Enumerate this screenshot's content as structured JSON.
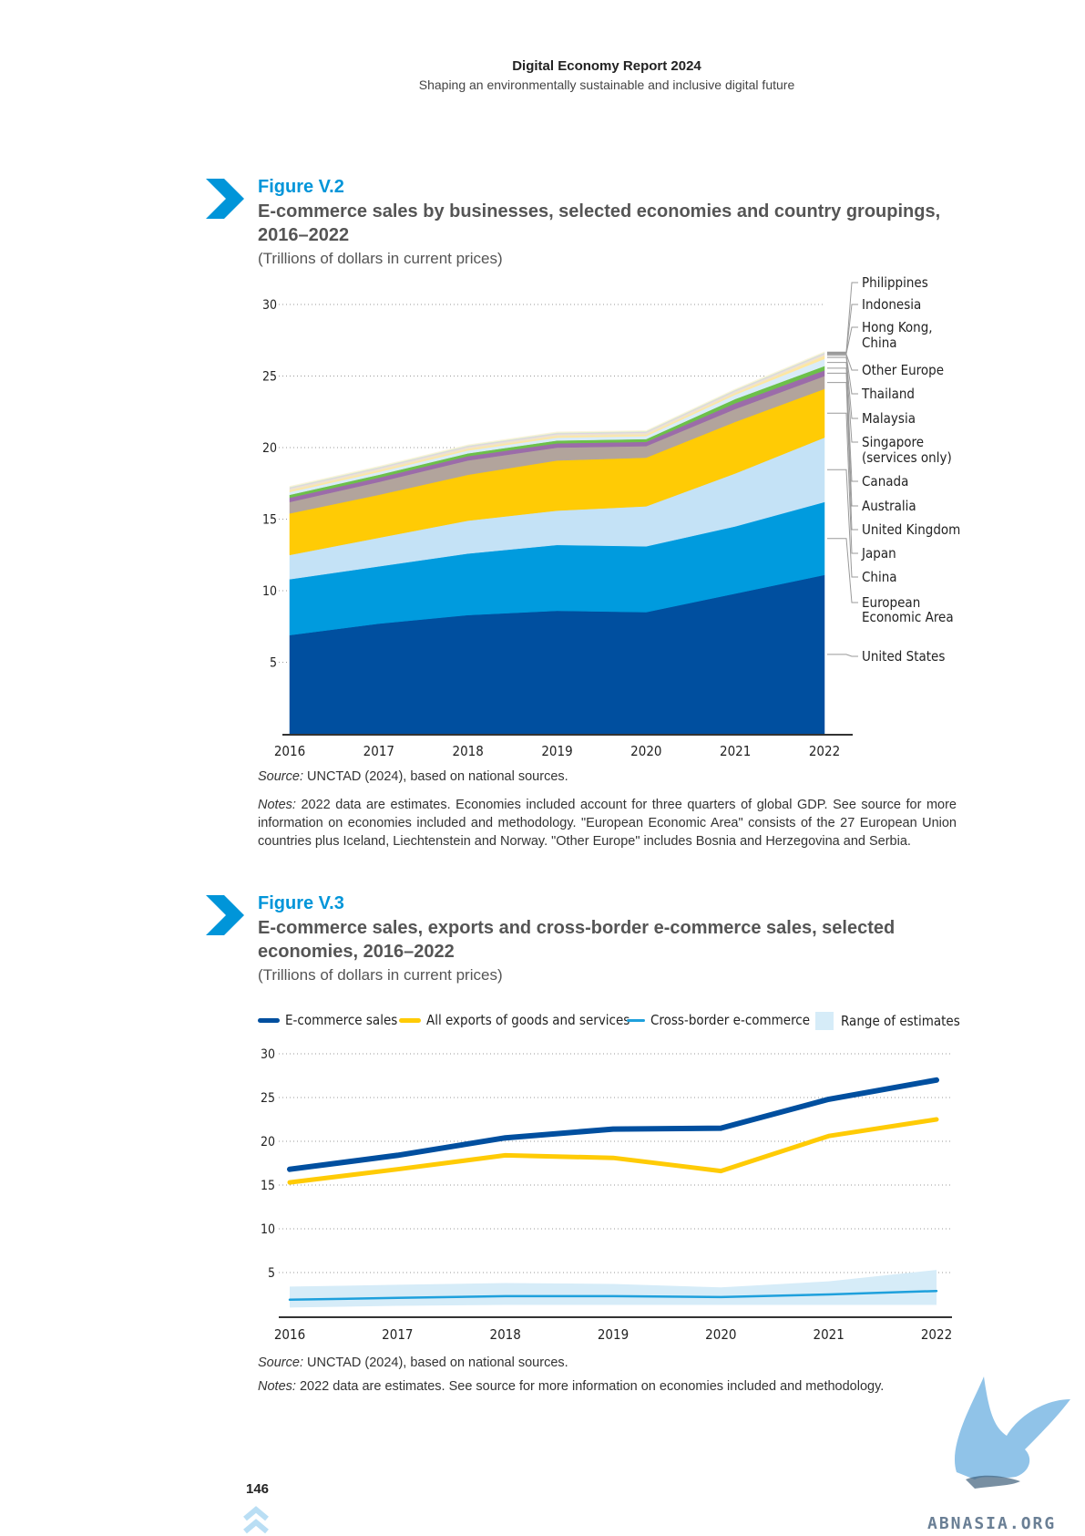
{
  "header": {
    "title": "Digital Economy Report 2024",
    "subtitle": "Shaping an environmentally sustainable and inclusive digital future"
  },
  "figure1": {
    "number": "Figure V.2",
    "title": "E-commerce sales by businesses, selected economies and country groupings, 2016–2022",
    "unit": "(Trillions of dollars in current prices)",
    "source_label": "Source:",
    "source_text": " UNCTAD (2024), based on national sources.",
    "notes_label": "Notes:",
    "notes_text": " 2022 data are estimates. Economies included account for three quarters of global GDP. See source for more information on economies included and methodology. \"European Economic Area\" consists of the 27 European Union countries plus Iceland, Liechtenstein and Norway. \"Other Europe\" includes Bosnia and Herzegovina and Serbia."
  },
  "figure2": {
    "number": "Figure V.3",
    "title": "E-commerce sales, exports and cross-border e-commerce sales, selected economies, 2016–2022",
    "unit": "(Trillions of dollars in current prices)",
    "source_label": "Source:",
    "source_text": " UNCTAD (2024), based on national sources.",
    "notes_label": "Notes:",
    "notes_text": " 2022 data are estimates. See source for more information on economies included and methodology."
  },
  "page_number": "146",
  "watermark_text": "ABNASIA.ORG",
  "chart_data": [
    {
      "type": "area",
      "stacked": true,
      "title": "E-commerce sales by businesses, selected economies and country groupings, 2016–2022",
      "ylabel": "(Trillions of dollars in current prices)",
      "x": [
        "2016",
        "2017",
        "2018",
        "2019",
        "2020",
        "2021",
        "2022"
      ],
      "ylim": [
        0,
        30
      ],
      "yticks": [
        5,
        10,
        15,
        20,
        25,
        30
      ],
      "grid": "horizontal dotted",
      "legend_position": "right",
      "series": [
        {
          "name": "United States",
          "color": "#004f9f",
          "values": [
            6.9,
            7.7,
            8.3,
            8.6,
            8.5,
            9.8,
            11.1
          ]
        },
        {
          "name": "European Economic Area",
          "color": "#009bde",
          "values": [
            3.9,
            4.0,
            4.3,
            4.6,
            4.6,
            4.7,
            5.1
          ]
        },
        {
          "name": "China",
          "color": "#c4e2f6",
          "values": [
            1.7,
            2.0,
            2.3,
            2.4,
            2.8,
            3.7,
            4.5
          ]
        },
        {
          "name": "Japan",
          "color": "#ffcb05",
          "values": [
            2.9,
            3.0,
            3.2,
            3.5,
            3.4,
            3.6,
            3.4
          ]
        },
        {
          "name": "United Kingdom",
          "color": "#b2a49c",
          "values": [
            0.8,
            0.9,
            1.0,
            0.9,
            0.8,
            0.9,
            0.9
          ]
        },
        {
          "name": "Australia",
          "color": "#9b6ca9",
          "values": [
            0.3,
            0.3,
            0.3,
            0.3,
            0.3,
            0.4,
            0.4
          ]
        },
        {
          "name": "Canada",
          "color": "#6cc04a",
          "values": [
            0.2,
            0.2,
            0.2,
            0.2,
            0.2,
            0.3,
            0.3
          ]
        },
        {
          "name": "Singapore (services only)",
          "color": "#d9ecf8",
          "values": [
            0.2,
            0.2,
            0.2,
            0.2,
            0.2,
            0.3,
            0.5
          ]
        },
        {
          "name": "Malaysia",
          "color": "#ffe7a0",
          "values": [
            0.1,
            0.1,
            0.1,
            0.1,
            0.1,
            0.1,
            0.2
          ]
        },
        {
          "name": "Thailand",
          "color": "#efe4c8",
          "values": [
            0.1,
            0.1,
            0.1,
            0.1,
            0.1,
            0.1,
            0.1
          ]
        },
        {
          "name": "Other Europe",
          "color": "#e8e0da",
          "values": [
            0.05,
            0.05,
            0.05,
            0.05,
            0.05,
            0.05,
            0.05
          ]
        },
        {
          "name": "Hong Kong, China",
          "color": "#dcd0e4",
          "values": [
            0.05,
            0.05,
            0.05,
            0.05,
            0.05,
            0.05,
            0.05
          ]
        },
        {
          "name": "Indonesia",
          "color": "#d8eecb",
          "values": [
            0.05,
            0.05,
            0.05,
            0.05,
            0.05,
            0.05,
            0.05
          ]
        },
        {
          "name": "Philippines",
          "color": "#fbf3dc",
          "values": [
            0.05,
            0.05,
            0.05,
            0.05,
            0.05,
            0.05,
            0.05
          ]
        }
      ]
    },
    {
      "type": "line",
      "title": "E-commerce sales, exports and cross-border e-commerce sales, selected economies, 2016–2022",
      "ylabel": "(Trillions of dollars in current prices)",
      "x": [
        "2016",
        "2017",
        "2018",
        "2019",
        "2020",
        "2021",
        "2022"
      ],
      "ylim": [
        0,
        30
      ],
      "yticks": [
        5,
        10,
        15,
        20,
        25,
        30
      ],
      "grid": "horizontal dotted",
      "legend_position": "top",
      "series": [
        {
          "name": "E-commerce sales",
          "color": "#004f9f",
          "values": [
            16.8,
            18.4,
            20.4,
            21.4,
            21.5,
            24.8,
            27.0
          ]
        },
        {
          "name": "All exports of goods and services",
          "color": "#ffcb05",
          "values": [
            15.3,
            16.8,
            18.4,
            18.1,
            16.6,
            20.6,
            22.5
          ]
        },
        {
          "name": "Cross-border e-commerce",
          "color": "#1ea0dc",
          "values": [
            1.9,
            2.1,
            2.3,
            2.3,
            2.2,
            2.5,
            2.9
          ]
        }
      ],
      "range_band": {
        "name": "Range of estimates",
        "color": "#d6ecf8",
        "low": [
          1.0,
          1.2,
          1.3,
          1.3,
          1.3,
          1.3,
          1.3
        ],
        "high": [
          3.4,
          3.6,
          3.8,
          3.7,
          3.3,
          4.0,
          5.3
        ]
      }
    }
  ]
}
